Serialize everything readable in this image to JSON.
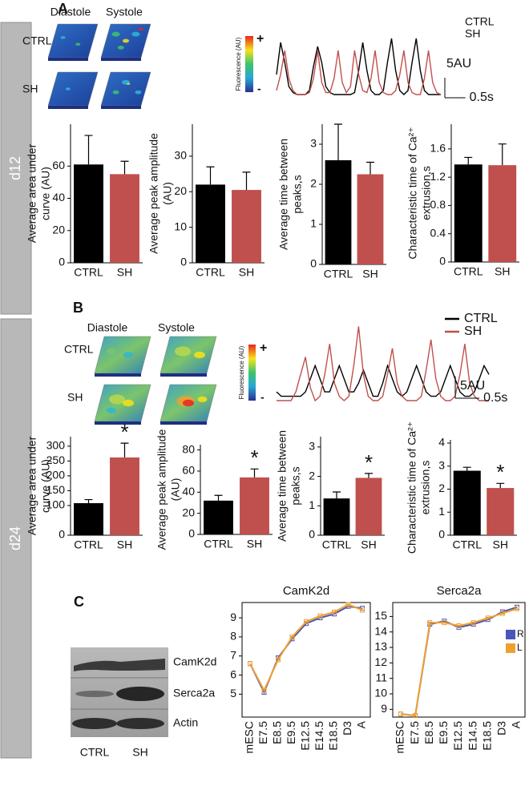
{
  "figure": {
    "sections": [
      "d12",
      "d24"
    ],
    "panel_labels": [
      "A",
      "B",
      "C"
    ],
    "heatmaps": [
      {
        "columns": [
          "Diastole",
          "Systole"
        ],
        "rows": [
          "CTRL",
          "SH"
        ]
      },
      {
        "columns": [
          "Diastole",
          "Systole"
        ],
        "rows": [
          "CTRL",
          "SH"
        ]
      }
    ],
    "colorbar": {
      "title": "Fluorescence (AU)",
      "max_label": "+",
      "min_label": "-"
    },
    "blot": {
      "bands": [
        "CamK2d",
        "Serca2a",
        "Actin"
      ],
      "lanes": [
        "CTRL",
        "SH"
      ]
    }
  },
  "chart_data": [
    {
      "type": "trace",
      "legend_style": "text",
      "x": [
        0,
        0.1,
        0.2,
        0.3,
        0.4,
        0.5,
        0.6,
        0.7,
        0.8,
        0.9,
        1,
        1.1,
        1.2,
        1.3,
        1.4,
        1.5,
        1.6,
        1.7,
        1.8,
        1.9,
        2,
        2.1,
        2.2,
        2.3,
        2.4,
        2.5,
        2.6,
        2.7,
        2.8,
        2.9,
        3,
        3.1,
        3.2,
        3.3,
        3.4,
        3.5,
        3.6,
        3.7,
        3.8,
        3.9,
        4
      ],
      "series": [
        {
          "name": "CTRL",
          "color": "#000000",
          "values": [
            5,
            13,
            8,
            2,
            0.5,
            0,
            0,
            0,
            1,
            7,
            12,
            8,
            2,
            0.5,
            0,
            0,
            0,
            0,
            0,
            0.5,
            6,
            13,
            6,
            1,
            0,
            0,
            1,
            8,
            14,
            6,
            1,
            0,
            1,
            8,
            14,
            6,
            1,
            0,
            0,
            0,
            0
          ]
        },
        {
          "name": "SH",
          "color": "#c0504d",
          "values": [
            1,
            5,
            11,
            4,
            1,
            0,
            0,
            0,
            0.5,
            4,
            11,
            3,
            0.5,
            0.5,
            4,
            11,
            3,
            0.5,
            2,
            11,
            5,
            1,
            0.5,
            4,
            11,
            3,
            0.5,
            0,
            0,
            1,
            5,
            11,
            3,
            0.5,
            0,
            0,
            4,
            11,
            3,
            0.5,
            0
          ]
        }
      ],
      "xlim": [
        0,
        4
      ],
      "ylim": [
        0,
        16
      ],
      "scale_bars": {
        "y": {
          "value": 5,
          "label": "5AU"
        },
        "x": {
          "value": 0.5,
          "label": "0.5s"
        }
      }
    },
    {
      "type": "bar",
      "ylabel": [
        "Average area under",
        "curve (AU)"
      ],
      "categories": [
        "CTRL",
        "SH"
      ],
      "values": [
        61,
        55
      ],
      "errors": [
        18,
        8
      ],
      "colors": [
        "#000000",
        "#c0504d"
      ],
      "ylim": [
        0,
        86
      ],
      "yticks": [
        0,
        20,
        40,
        60
      ]
    },
    {
      "type": "bar",
      "ylabel": [
        "Average peak amplitude",
        "(AU)"
      ],
      "categories": [
        "CTRL",
        "SH"
      ],
      "values": [
        22,
        20.5
      ],
      "errors": [
        5,
        5
      ],
      "colors": [
        "#000000",
        "#c0504d"
      ],
      "ylim": [
        0,
        39
      ],
      "yticks": [
        0,
        10,
        20,
        30
      ]
    },
    {
      "type": "bar",
      "ylabel": [
        "Average time between",
        "peaks,s"
      ],
      "categories": [
        "CTRL",
        "SH"
      ],
      "values": [
        2.6,
        2.25
      ],
      "errors": [
        0.9,
        0.3
      ],
      "colors": [
        "#000000",
        "#c0504d"
      ],
      "ylim": [
        0,
        3.5
      ],
      "yticks": [
        0,
        1,
        2,
        3
      ]
    },
    {
      "type": "bar",
      "ylabel": [
        "Characteristic time of Ca²⁺",
        "extrusion,s"
      ],
      "categories": [
        "CTRL",
        "SH"
      ],
      "values": [
        1.38,
        1.37
      ],
      "errors": [
        0.1,
        0.3
      ],
      "colors": [
        "#000000",
        "#c0504d"
      ],
      "ylim": [
        0,
        1.95
      ],
      "yticks": [
        0,
        0.4,
        0.8,
        1.2,
        1.6
      ]
    },
    {
      "type": "trace",
      "legend_style": "line",
      "x": [
        0,
        0.1,
        0.2,
        0.3,
        0.4,
        0.5,
        0.6,
        0.7,
        0.8,
        0.9,
        1,
        1.1,
        1.2,
        1.3,
        1.4,
        1.5,
        1.6,
        1.7,
        1.8,
        1.9,
        2,
        2.1,
        2.2,
        2.3,
        2.4,
        2.5,
        2.6,
        2.7,
        2.8,
        2.9,
        3,
        3.1,
        3.2,
        3.3,
        3.4,
        3.5,
        3.6,
        3.7,
        3.8,
        3.9,
        4,
        4.1,
        4.2,
        4.3,
        4.4
      ],
      "series": [
        {
          "name": "CTRL",
          "color": "#000000",
          "values": [
            2,
            1,
            1,
            1,
            1,
            1,
            2,
            5,
            8,
            5,
            2,
            2,
            5,
            8,
            5,
            2,
            2,
            4,
            7,
            4,
            1,
            1,
            4,
            8,
            5,
            2,
            1,
            2,
            5,
            8,
            5,
            2,
            1,
            1,
            2,
            5,
            8,
            5,
            2,
            1,
            1,
            2,
            5,
            8,
            6
          ]
        },
        {
          "name": "SH",
          "color": "#c0504d",
          "values": [
            0,
            0,
            0,
            0,
            2,
            6,
            10,
            3,
            0,
            1,
            6,
            13,
            4,
            1,
            0,
            1,
            8,
            17,
            6,
            1,
            0,
            0,
            1,
            6,
            12,
            4,
            1,
            0,
            0,
            0,
            1,
            7,
            14,
            5,
            1,
            0,
            0,
            1,
            6,
            13,
            4,
            1,
            0,
            0,
            0
          ]
        }
      ],
      "xlim": [
        0,
        4.4
      ],
      "ylim": [
        0,
        18
      ],
      "scale_bars": {
        "y": {
          "value": 5,
          "label": "5AU"
        },
        "x": {
          "value": 0.5,
          "label": "0.5s"
        }
      }
    },
    {
      "type": "bar",
      "ylabel": [
        "Average area under",
        "curve (AU)"
      ],
      "categories": [
        "CTRL",
        "SH"
      ],
      "values": [
        108,
        262
      ],
      "errors": [
        12,
        48
      ],
      "significance": [
        null,
        "*"
      ],
      "colors": [
        "#000000",
        "#c0504d"
      ],
      "ylim": [
        0,
        332
      ],
      "yticks": [
        0,
        100,
        150,
        200,
        250,
        300
      ]
    },
    {
      "type": "bar",
      "ylabel": [
        "Average peak amplitude",
        "(AU)"
      ],
      "categories": [
        "CTRL",
        "SH"
      ],
      "values": [
        32,
        54
      ],
      "errors": [
        5,
        8
      ],
      "significance": [
        null,
        "*"
      ],
      "colors": [
        "#000000",
        "#c0504d"
      ],
      "ylim": [
        0,
        85
      ],
      "yticks": [
        0,
        20,
        40,
        60,
        80
      ]
    },
    {
      "type": "bar",
      "ylabel": [
        "Average time between",
        "peaks,s"
      ],
      "categories": [
        "CTRL",
        "SH"
      ],
      "values": [
        1.25,
        1.95
      ],
      "errors": [
        0.22,
        0.15
      ],
      "significance": [
        null,
        "*"
      ],
      "colors": [
        "#000000",
        "#c0504d"
      ],
      "ylim": [
        0,
        3.35
      ],
      "yticks": [
        0,
        1,
        2,
        3
      ]
    },
    {
      "type": "bar",
      "ylabel": [
        "Characteristic time of Ca²⁺",
        "extrusion,s"
      ],
      "categories": [
        "CTRL",
        "SH"
      ],
      "values": [
        2.8,
        2.05
      ],
      "errors": [
        0.15,
        0.2
      ],
      "significance": [
        null,
        "*"
      ],
      "colors": [
        "#000000",
        "#c0504d"
      ],
      "ylim": [
        0,
        4.14
      ],
      "yticks": [
        0,
        1,
        2,
        3,
        4
      ]
    },
    {
      "type": "line",
      "title": "CamK2d",
      "categories": [
        "mESC",
        "E7.5",
        "E8.5",
        "E9.5",
        "E12.5",
        "E14.5",
        "E18.5",
        "D3",
        "A"
      ],
      "series": [
        {
          "color": "#4a56b8",
          "values": [
            6.6,
            5.1,
            6.9,
            7.9,
            8.7,
            9.0,
            9.2,
            9.6,
            9.5
          ]
        },
        {
          "color": "#f0a030",
          "values": [
            6.6,
            5.2,
            6.8,
            8.0,
            8.8,
            9.1,
            9.3,
            9.7,
            9.4
          ]
        }
      ],
      "ylim": [
        3.8,
        9.8
      ],
      "yticks": [
        5,
        6,
        7,
        8,
        9
      ]
    },
    {
      "type": "line",
      "title": "Serca2a",
      "categories": [
        "mESC",
        "E7.5",
        "E8.5",
        "E9.5",
        "E12.5",
        "E14.5",
        "E18.5",
        "D3",
        "A"
      ],
      "series": [
        {
          "name": "R",
          "color": "#4a56b8",
          "values": [
            8.7,
            8.6,
            14.5,
            14.7,
            14.3,
            14.5,
            14.8,
            15.3,
            15.6
          ]
        },
        {
          "name": "L",
          "color": "#f0a030",
          "values": [
            8.7,
            8.6,
            14.6,
            14.6,
            14.4,
            14.6,
            14.9,
            15.2,
            15.5
          ]
        }
      ],
      "ylim": [
        8.5,
        15.9
      ],
      "yticks": [
        9,
        10,
        11,
        12,
        13,
        14,
        15
      ],
      "legend": true
    }
  ]
}
